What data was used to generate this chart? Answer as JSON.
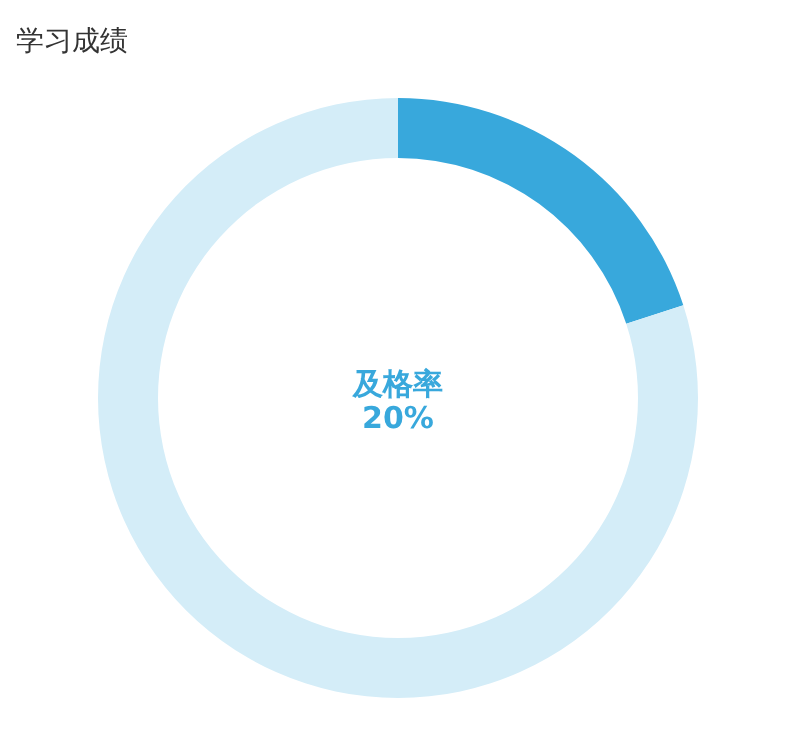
{
  "chart_data": {
    "type": "donut",
    "title": "学习成绩",
    "categories": [
      "及格率",
      null
    ],
    "values": [
      20,
      80
    ],
    "colors": [
      "#38a8dc",
      "#d4edf8"
    ],
    "value_labels": [
      "20%",
      null
    ]
  }
}
